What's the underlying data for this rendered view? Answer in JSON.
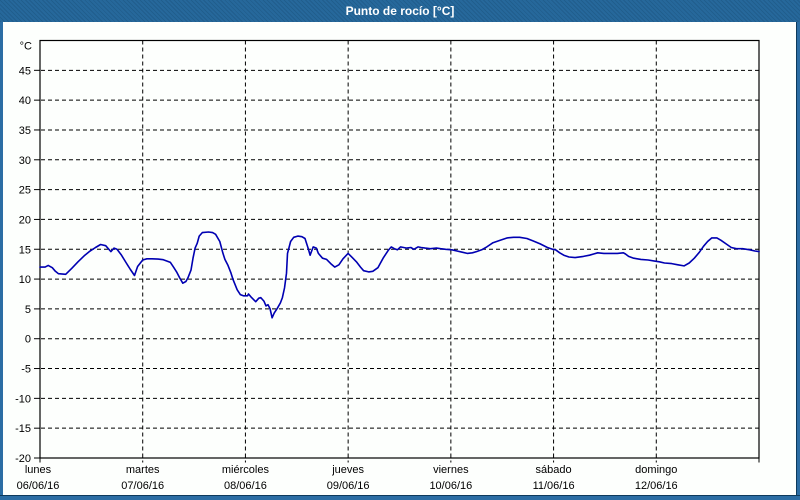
{
  "window": {
    "title": "Punto de rocío [°C]"
  },
  "colors": {
    "titlebar_bg": "#26689B",
    "titlebar_text": "#FFFFFF",
    "window_border": "#2B6DA4",
    "content_bg": "#FDFFFD",
    "line": "#0000B2",
    "grid": "#000000",
    "label_text": "#000000"
  },
  "chart_data": {
    "type": "line",
    "title": "Punto de rocío [°C]",
    "ylabel_unit": "°C",
    "ylim": [
      -20,
      50
    ],
    "ytick_step": 5,
    "yticks": [
      45,
      40,
      35,
      30,
      25,
      20,
      15,
      10,
      5,
      0,
      -5,
      -10,
      -15,
      -20
    ],
    "grid": "dashed",
    "legend_position": "none",
    "x_days": [
      {
        "name": "lunes",
        "date": "06/06/16"
      },
      {
        "name": "martes",
        "date": "07/06/16"
      },
      {
        "name": "miércoles",
        "date": "08/06/16"
      },
      {
        "name": "jueves",
        "date": "09/06/16"
      },
      {
        "name": "viernes",
        "date": "10/06/16"
      },
      {
        "name": "sábado",
        "date": "11/06/16"
      },
      {
        "name": "domingo",
        "date": "12/06/16"
      }
    ],
    "series": [
      {
        "name": "Punto de rocío",
        "color": "#0000B2",
        "x_unit": "days_from_start_of_week",
        "points": [
          [
            0.0,
            12.0
          ],
          [
            0.05,
            12.0
          ],
          [
            0.08,
            12.3
          ],
          [
            0.12,
            11.9
          ],
          [
            0.15,
            11.3
          ],
          [
            0.18,
            10.9
          ],
          [
            0.25,
            10.8
          ],
          [
            0.31,
            11.8
          ],
          [
            0.37,
            12.9
          ],
          [
            0.43,
            13.9
          ],
          [
            0.48,
            14.6
          ],
          [
            0.54,
            15.3
          ],
          [
            0.59,
            15.8
          ],
          [
            0.64,
            15.6
          ],
          [
            0.69,
            14.6
          ],
          [
            0.72,
            15.2
          ],
          [
            0.75,
            15.0
          ],
          [
            0.79,
            14.1
          ],
          [
            0.84,
            12.7
          ],
          [
            0.88,
            11.6
          ],
          [
            0.92,
            10.6
          ],
          [
            0.95,
            12.1
          ],
          [
            1.0,
            13.2
          ],
          [
            1.04,
            13.4
          ],
          [
            1.09,
            13.4
          ],
          [
            1.15,
            13.35
          ],
          [
            1.2,
            13.25
          ],
          [
            1.24,
            13.0
          ],
          [
            1.27,
            12.8
          ],
          [
            1.3,
            12.0
          ],
          [
            1.33,
            11.2
          ],
          [
            1.36,
            10.2
          ],
          [
            1.39,
            9.3
          ],
          [
            1.42,
            9.6
          ],
          [
            1.44,
            10.2
          ],
          [
            1.47,
            11.5
          ],
          [
            1.49,
            13.5
          ],
          [
            1.51,
            15.2
          ],
          [
            1.53,
            16.0
          ],
          [
            1.55,
            17.2
          ],
          [
            1.58,
            17.8
          ],
          [
            1.64,
            17.9
          ],
          [
            1.68,
            17.8
          ],
          [
            1.71,
            17.5
          ],
          [
            1.75,
            16.3
          ],
          [
            1.78,
            14.4
          ],
          [
            1.8,
            13.3
          ],
          [
            1.83,
            12.3
          ],
          [
            1.86,
            11.0
          ],
          [
            1.88,
            9.9
          ],
          [
            1.92,
            8.2
          ],
          [
            1.95,
            7.4
          ],
          [
            1.98,
            7.2
          ],
          [
            2.02,
            7.2
          ],
          [
            2.03,
            7.5
          ],
          [
            2.06,
            6.9
          ],
          [
            2.1,
            6.2
          ],
          [
            2.13,
            6.8
          ],
          [
            2.15,
            6.9
          ],
          [
            2.18,
            6.3
          ],
          [
            2.2,
            5.5
          ],
          [
            2.22,
            5.7
          ],
          [
            2.24,
            5.0
          ],
          [
            2.26,
            3.5
          ],
          [
            2.28,
            4.3
          ],
          [
            2.31,
            5.1
          ],
          [
            2.34,
            6.0
          ],
          [
            2.36,
            6.9
          ],
          [
            2.38,
            8.5
          ],
          [
            2.4,
            11.0
          ],
          [
            2.41,
            14.3
          ],
          [
            2.44,
            16.3
          ],
          [
            2.47,
            17.0
          ],
          [
            2.51,
            17.2
          ],
          [
            2.55,
            17.1
          ],
          [
            2.58,
            16.8
          ],
          [
            2.61,
            15.2
          ],
          [
            2.63,
            14.0
          ],
          [
            2.66,
            15.4
          ],
          [
            2.69,
            15.2
          ],
          [
            2.71,
            14.3
          ],
          [
            2.75,
            13.5
          ],
          [
            2.79,
            13.3
          ],
          [
            2.83,
            12.6
          ],
          [
            2.87,
            12.0
          ],
          [
            2.91,
            12.4
          ],
          [
            2.95,
            13.4
          ],
          [
            3.0,
            14.3
          ],
          [
            3.04,
            13.6
          ],
          [
            3.08,
            12.9
          ],
          [
            3.12,
            12.0
          ],
          [
            3.15,
            11.4
          ],
          [
            3.2,
            11.2
          ],
          [
            3.24,
            11.3
          ],
          [
            3.29,
            11.9
          ],
          [
            3.34,
            13.5
          ],
          [
            3.39,
            14.8
          ],
          [
            3.42,
            15.4
          ],
          [
            3.45,
            15.1
          ],
          [
            3.48,
            14.9
          ],
          [
            3.51,
            15.4
          ],
          [
            3.54,
            15.3
          ],
          [
            3.57,
            15.2
          ],
          [
            3.61,
            15.3
          ],
          [
            3.64,
            15.0
          ],
          [
            3.68,
            15.4
          ],
          [
            3.71,
            15.3
          ],
          [
            3.75,
            15.2
          ],
          [
            3.8,
            15.1
          ],
          [
            3.86,
            15.2
          ],
          [
            3.9,
            15.1
          ],
          [
            3.95,
            15.0
          ],
          [
            4.01,
            14.9
          ],
          [
            4.06,
            14.7
          ],
          [
            4.11,
            14.5
          ],
          [
            4.16,
            14.3
          ],
          [
            4.21,
            14.4
          ],
          [
            4.25,
            14.6
          ],
          [
            4.3,
            14.9
          ],
          [
            4.35,
            15.4
          ],
          [
            4.41,
            16.1
          ],
          [
            4.48,
            16.5
          ],
          [
            4.55,
            16.9
          ],
          [
            4.61,
            17.0
          ],
          [
            4.67,
            17.0
          ],
          [
            4.74,
            16.8
          ],
          [
            4.8,
            16.4
          ],
          [
            4.87,
            15.9
          ],
          [
            4.94,
            15.3
          ],
          [
            4.99,
            15.0
          ],
          [
            5.02,
            14.9
          ],
          [
            5.06,
            14.4
          ],
          [
            5.1,
            14.0
          ],
          [
            5.15,
            13.7
          ],
          [
            5.21,
            13.6
          ],
          [
            5.29,
            13.8
          ],
          [
            5.35,
            14.0
          ],
          [
            5.39,
            14.2
          ],
          [
            5.43,
            14.4
          ],
          [
            5.49,
            14.3
          ],
          [
            5.55,
            14.3
          ],
          [
            5.62,
            14.3
          ],
          [
            5.68,
            14.4
          ],
          [
            5.7,
            14.2
          ],
          [
            5.73,
            13.8
          ],
          [
            5.78,
            13.5
          ],
          [
            5.85,
            13.3
          ],
          [
            5.92,
            13.2
          ],
          [
            5.99,
            13.0
          ],
          [
            6.03,
            12.9
          ],
          [
            6.08,
            12.7
          ],
          [
            6.15,
            12.6
          ],
          [
            6.21,
            12.4
          ],
          [
            6.27,
            12.2
          ],
          [
            6.32,
            12.7
          ],
          [
            6.37,
            13.5
          ],
          [
            6.42,
            14.5
          ],
          [
            6.46,
            15.5
          ],
          [
            6.5,
            16.3
          ],
          [
            6.54,
            16.9
          ],
          [
            6.59,
            16.9
          ],
          [
            6.63,
            16.5
          ],
          [
            6.68,
            15.9
          ],
          [
            6.73,
            15.3
          ],
          [
            6.78,
            15.1
          ],
          [
            6.84,
            15.1
          ],
          [
            6.91,
            14.9
          ],
          [
            6.96,
            14.7
          ],
          [
            7.0,
            14.6
          ]
        ]
      }
    ]
  }
}
